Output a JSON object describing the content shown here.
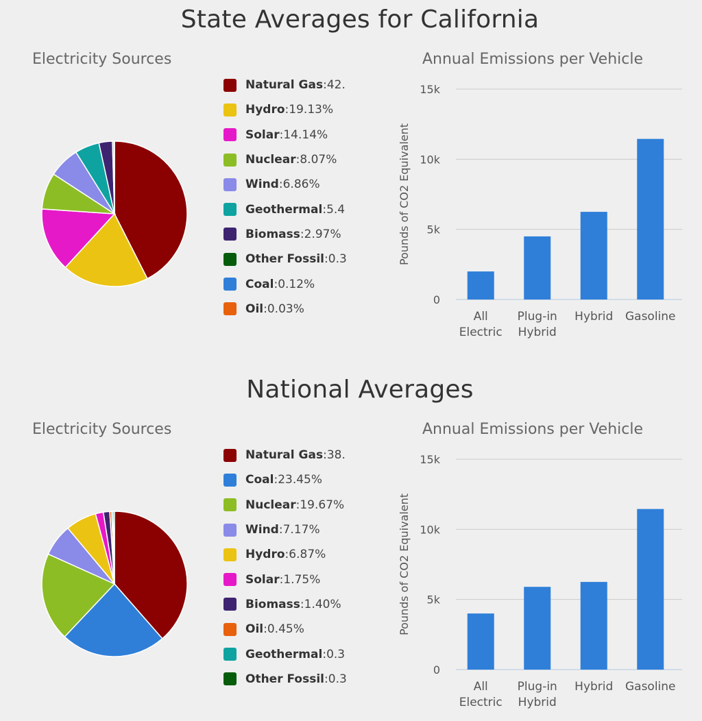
{
  "sections": [
    {
      "title": "State Averages for California",
      "pie": {
        "title": "Electricity Sources",
        "chart_data": {
          "type": "pie",
          "slices": [
            {
              "name": "Natural Gas",
              "label": "42.",
              "value": 42.2,
              "color": "#8b0000"
            },
            {
              "name": "Hydro",
              "label": "19.13%",
              "value": 19.13,
              "color": "#ebc313"
            },
            {
              "name": "Solar",
              "label": "14.14%",
              "value": 14.14,
              "color": "#e619c8"
            },
            {
              "name": "Nuclear",
              "label": "8.07%",
              "value": 8.07,
              "color": "#8dbd25"
            },
            {
              "name": "Wind",
              "label": "6.86%",
              "value": 6.86,
              "color": "#8a8ae8"
            },
            {
              "name": "Geothermal",
              "label": "5.4",
              "value": 5.4,
              "color": "#0ea3a0"
            },
            {
              "name": "Biomass",
              "label": "2.97%",
              "value": 2.97,
              "color": "#3e2470"
            },
            {
              "name": "Other Fossil",
              "label": "0.3",
              "value": 0.3,
              "color": "#075c0b"
            },
            {
              "name": "Coal",
              "label": "0.12%",
              "value": 0.12,
              "color": "#2f7fd9"
            },
            {
              "name": "Oil",
              "label": "0.03%",
              "value": 0.03,
              "color": "#e8610d"
            }
          ]
        }
      },
      "bar": {
        "title": "Annual Emissions per Vehicle",
        "chart_data": {
          "type": "bar",
          "categories": [
            [
              "All",
              "Electric"
            ],
            [
              "Plug-in",
              "Hybrid"
            ],
            [
              "Hybrid"
            ],
            [
              "Gasoline"
            ]
          ],
          "values": [
            2000,
            4500,
            6250,
            11450
          ],
          "ylabel": "Pounds of CO2 Equivalent",
          "ylim": [
            0,
            15000
          ],
          "ticks": [
            {
              "value": 0,
              "label": "0"
            },
            {
              "value": 5000,
              "label": "5k"
            },
            {
              "value": 10000,
              "label": "10k"
            },
            {
              "value": 15000,
              "label": "15k"
            }
          ],
          "bar_color": "#2f7fd9",
          "grid": true
        }
      }
    },
    {
      "title": "National Averages",
      "pie": {
        "title": "Electricity Sources",
        "chart_data": {
          "type": "pie",
          "slices": [
            {
              "name": "Natural Gas",
              "label": "38.",
              "value": 38.5,
              "color": "#8b0000"
            },
            {
              "name": "Coal",
              "label": "23.45%",
              "value": 23.45,
              "color": "#2f7fd9"
            },
            {
              "name": "Nuclear",
              "label": "19.67%",
              "value": 19.67,
              "color": "#8dbd25"
            },
            {
              "name": "Wind",
              "label": "7.17%",
              "value": 7.17,
              "color": "#8a8ae8"
            },
            {
              "name": "Hydro",
              "label": "6.87%",
              "value": 6.87,
              "color": "#ebc313"
            },
            {
              "name": "Solar",
              "label": "1.75%",
              "value": 1.75,
              "color": "#e619c8"
            },
            {
              "name": "Biomass",
              "label": "1.40%",
              "value": 1.4,
              "color": "#3e2470"
            },
            {
              "name": "Oil",
              "label": "0.45%",
              "value": 0.45,
              "color": "#e8610d"
            },
            {
              "name": "Geothermal",
              "label": "0.3",
              "value": 0.3,
              "color": "#0ea3a0"
            },
            {
              "name": "Other Fossil",
              "label": "0.3",
              "value": 0.3,
              "color": "#075c0b"
            }
          ]
        }
      },
      "bar": {
        "title": "Annual Emissions per Vehicle",
        "chart_data": {
          "type": "bar",
          "categories": [
            [
              "All",
              "Electric"
            ],
            [
              "Plug-in",
              "Hybrid"
            ],
            [
              "Hybrid"
            ],
            [
              "Gasoline"
            ]
          ],
          "values": [
            4000,
            5900,
            6250,
            11450
          ],
          "ylabel": "Pounds of CO2 Equivalent",
          "ylim": [
            0,
            15000
          ],
          "ticks": [
            {
              "value": 0,
              "label": "0"
            },
            {
              "value": 5000,
              "label": "5k"
            },
            {
              "value": 10000,
              "label": "10k"
            },
            {
              "value": 15000,
              "label": "15k"
            }
          ],
          "bar_color": "#2f7fd9",
          "grid": true
        }
      }
    }
  ]
}
